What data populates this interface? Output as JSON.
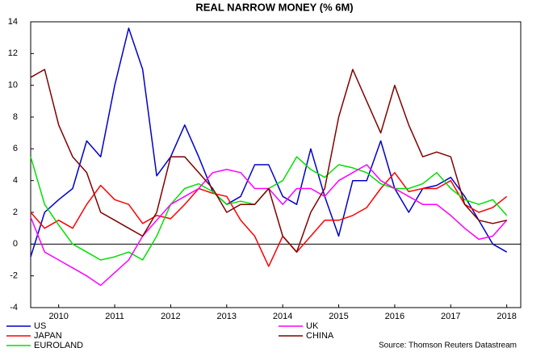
{
  "chart_data": {
    "type": "line",
    "title": "REAL NARROW MONEY (% 6M)",
    "source": "Source: Thomson Reuters Datastream",
    "x": [
      2010,
      2010.25,
      2010.5,
      2010.75,
      2011,
      2011.25,
      2011.5,
      2011.75,
      2012,
      2012.25,
      2012.5,
      2012.75,
      2013,
      2013.25,
      2013.5,
      2013.75,
      2014,
      2014.25,
      2014.5,
      2014.75,
      2015,
      2015.25,
      2015.5,
      2015.75,
      2016,
      2016.25,
      2016.5,
      2016.75,
      2017,
      2017.25,
      2017.5,
      2017.75,
      2018,
      2018.25,
      2018.5
    ],
    "xlim": [
      2010,
      2018.75
    ],
    "xticks": [
      {
        "value": 2010.5,
        "label": "2010"
      },
      {
        "value": 2011.5,
        "label": "2011"
      },
      {
        "value": 2012.5,
        "label": "2012"
      },
      {
        "value": 2013.5,
        "label": "2013"
      },
      {
        "value": 2014.5,
        "label": "2014"
      },
      {
        "value": 2015.5,
        "label": "2015"
      },
      {
        "value": 2016.5,
        "label": "2016"
      },
      {
        "value": 2017.5,
        "label": "2017"
      },
      {
        "value": 2018.5,
        "label": "2018"
      }
    ],
    "ylim": [
      -4,
      14
    ],
    "yticks": [
      -4,
      -2,
      0,
      2,
      4,
      6,
      8,
      10,
      12,
      14
    ],
    "series": [
      {
        "name": "US",
        "color": "#0000cc",
        "values": [
          -0.8,
          2.0,
          2.8,
          3.5,
          6.5,
          5.5,
          10,
          13.6,
          11,
          4.3,
          5.5,
          7.5,
          5.5,
          3.3,
          2.5,
          3,
          5,
          5,
          3,
          2.5,
          6,
          3,
          0.5,
          4,
          4,
          6.5,
          3.5,
          2,
          3.5,
          3.7,
          4.2,
          3,
          1.5,
          0,
          -0.5
        ]
      },
      {
        "name": "JAPAN",
        "color": "#ff0000",
        "values": [
          2.0,
          1.0,
          1.5,
          1.0,
          2.5,
          3.7,
          2.8,
          2.5,
          1.3,
          1.8,
          1.6,
          2.5,
          3.5,
          3.2,
          3.0,
          1.5,
          0.5,
          -1.4,
          0.5,
          -0.5,
          0.5,
          1.5,
          1.5,
          1.8,
          2.3,
          3.5,
          4.5,
          3.3,
          3.5,
          3.5,
          4.0,
          2.5,
          2.0,
          2.3,
          3.0
        ]
      },
      {
        "name": "EUROLAND",
        "color": "#00e000",
        "values": [
          5.5,
          2.5,
          1.2,
          0,
          -0.5,
          -1.0,
          -0.8,
          -0.5,
          -1.0,
          0.5,
          2.5,
          3.5,
          3.8,
          3.3,
          2.5,
          2.7,
          2.5,
          3.5,
          4.0,
          5.5,
          4.7,
          4.2,
          5.0,
          4.8,
          4.5,
          3.8,
          3.5,
          3.5,
          3.8,
          4.5,
          3.5,
          2.8,
          2.5,
          2.8,
          1.8
        ]
      },
      {
        "name": "UK",
        "color": "#ff00ff",
        "values": [
          1.7,
          -0.5,
          -1.0,
          -1.5,
          -2.0,
          -2.6,
          -1.8,
          -1.0,
          0.5,
          1.5,
          2.5,
          3.0,
          3.5,
          4.5,
          4.7,
          4.5,
          3.5,
          3.5,
          2.5,
          3.5,
          3.5,
          3.0,
          4.0,
          4.5,
          5.0,
          4.0,
          3.5,
          3.0,
          2.5,
          2.5,
          1.8,
          1.0,
          0.3,
          0.5,
          1.5
        ]
      },
      {
        "name": "CHINA",
        "color": "#800000",
        "values": [
          10.5,
          11,
          7.5,
          5.5,
          4.5,
          2.0,
          1.5,
          1.0,
          0.5,
          2.0,
          5.5,
          5.5,
          4.5,
          3.5,
          2.0,
          2.5,
          2.5,
          3.5,
          0.5,
          -0.5,
          2.0,
          3.5,
          8.0,
          11.0,
          9.0,
          7.0,
          10.0,
          7.5,
          5.5,
          5.8,
          5.5,
          2.5,
          1.5,
          1.3,
          1.5
        ]
      }
    ]
  }
}
